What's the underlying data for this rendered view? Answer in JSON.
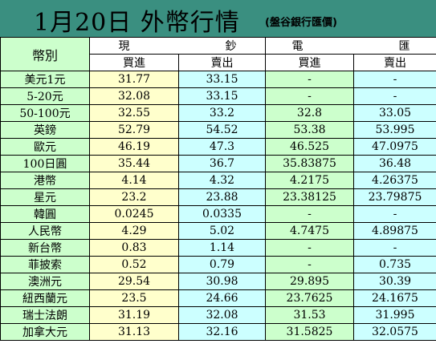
{
  "header": {
    "title": "1月20日 外幣行情",
    "source": "(盤谷銀行匯價)"
  },
  "table": {
    "col_label": "幣別",
    "group_cash": [
      "現",
      "鈔"
    ],
    "group_tel": [
      "電",
      "匯"
    ],
    "sub_headers": [
      "買進",
      "賣出",
      "買進",
      "賣出"
    ],
    "rows": [
      {
        "currency": "美元1元",
        "cash_buy": "31.77",
        "cash_sell": "33.15",
        "tel_buy": "-",
        "tel_sell": "-"
      },
      {
        "currency": "5-20元",
        "cash_buy": "32.08",
        "cash_sell": "33.15",
        "tel_buy": "-",
        "tel_sell": "-"
      },
      {
        "currency": "50-100元",
        "cash_buy": "32.55",
        "cash_sell": "33.2",
        "tel_buy": "32.8",
        "tel_sell": "33.05"
      },
      {
        "currency": "英鎊",
        "cash_buy": "52.79",
        "cash_sell": "54.52",
        "tel_buy": "53.38",
        "tel_sell": "53.995"
      },
      {
        "currency": "歐元",
        "cash_buy": "46.19",
        "cash_sell": "47.3",
        "tel_buy": "46.525",
        "tel_sell": "47.0975"
      },
      {
        "currency": "100日圓",
        "cash_buy": "35.44",
        "cash_sell": "36.7",
        "tel_buy": "35.83875",
        "tel_sell": "36.48"
      },
      {
        "currency": "港幣",
        "cash_buy": "4.14",
        "cash_sell": "4.32",
        "tel_buy": "4.2175",
        "tel_sell": "4.26375"
      },
      {
        "currency": "星元",
        "cash_buy": "23.2",
        "cash_sell": "23.88",
        "tel_buy": "23.38125",
        "tel_sell": "23.79875"
      },
      {
        "currency": "韓圓",
        "cash_buy": "0.0245",
        "cash_sell": "0.0335",
        "tel_buy": "-",
        "tel_sell": "-"
      },
      {
        "currency": "人民幣",
        "cash_buy": "4.29",
        "cash_sell": "5.02",
        "tel_buy": "4.7475",
        "tel_sell": "4.89875"
      },
      {
        "currency": "新台幣",
        "cash_buy": "0.83",
        "cash_sell": "1.14",
        "tel_buy": "-",
        "tel_sell": "-"
      },
      {
        "currency": "菲披索",
        "cash_buy": "0.52",
        "cash_sell": "0.79",
        "tel_buy": "-",
        "tel_sell": "0.735"
      },
      {
        "currency": "澳洲元",
        "cash_buy": "29.54",
        "cash_sell": "30.98",
        "tel_buy": "29.895",
        "tel_sell": "30.39"
      },
      {
        "currency": "紐西蘭元",
        "cash_buy": "23.5",
        "cash_sell": "24.66",
        "tel_buy": "23.7625",
        "tel_sell": "24.1675"
      },
      {
        "currency": "瑞士法朗",
        "cash_buy": "31.19",
        "cash_sell": "32.08",
        "tel_buy": "31.53",
        "tel_sell": "31.995"
      },
      {
        "currency": "加拿大元",
        "cash_buy": "31.13",
        "cash_sell": "32.16",
        "tel_buy": "31.5825",
        "tel_sell": "32.0575"
      }
    ]
  },
  "colors": {
    "header_bg": "#3a8f80",
    "label_bg": "#ccffcc",
    "buy_bg": "#ffffcc",
    "sell_bg": "#ccffff"
  }
}
